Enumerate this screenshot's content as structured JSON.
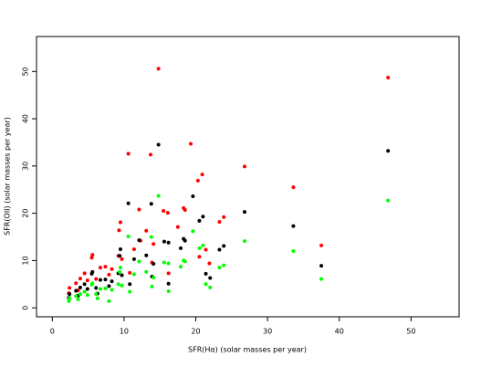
{
  "chart_data": {
    "type": "scatter",
    "x_label": "SFR(Hα) (solar masses per year)",
    "y_label": "SFR(OII) (solar masses per year)",
    "xlim": [
      -2.2,
      56.7
    ],
    "ylim": [
      -1.9,
      57.4
    ],
    "xticks": [
      0,
      10,
      20,
      30,
      40,
      50
    ],
    "yticks": [
      0,
      10,
      20,
      30,
      40,
      50
    ],
    "series": [
      {
        "color": "#ff0000",
        "x": [
          14.8,
          46.8,
          19.3,
          10.6,
          13.7,
          26.8,
          20.9,
          20.3,
          33.6,
          15.5,
          16.1,
          18.3,
          18.5,
          23.9,
          23.3,
          12.1,
          9.5,
          9.3,
          13.1,
          17.5,
          37.5,
          5.6,
          5.5,
          9.2,
          9.7,
          12.3,
          11.4,
          14.1,
          21.4,
          21.9,
          8.3,
          7.4,
          6.7,
          4.5,
          3.9,
          3.3,
          2.4,
          2.3,
          4.9,
          6.1,
          7.9,
          10.8,
          13.9,
          16.2,
          20.5,
          3.6
        ],
        "values": [
          50.6,
          48.7,
          34.7,
          32.6,
          32.4,
          29.9,
          28.2,
          26.9,
          25.5,
          20.5,
          20.1,
          21.1,
          20.7,
          19.2,
          18.2,
          20.8,
          18.1,
          16.4,
          16.3,
          17.1,
          13.2,
          11.2,
          10.6,
          11.0,
          10.3,
          14.2,
          12.4,
          13.5,
          12.3,
          9.4,
          8.2,
          8.7,
          8.5,
          7.3,
          6.2,
          5.2,
          4.2,
          3.1,
          5.8,
          6.1,
          7.0,
          7.4,
          9.6,
          7.3,
          10.8,
          3.7
        ]
      },
      {
        "color": "#000000",
        "x": [
          14.8,
          46.8,
          19.6,
          10.6,
          13.8,
          26.8,
          21.0,
          20.5,
          33.6,
          15.6,
          16.2,
          18.3,
          18.5,
          23.9,
          23.3,
          12.1,
          9.5,
          9.4,
          13.1,
          17.9,
          37.5,
          5.6,
          5.5,
          9.2,
          9.7,
          11.4,
          14.1,
          21.4,
          22.0,
          8.3,
          7.4,
          6.7,
          4.5,
          3.9,
          3.3,
          2.4,
          2.3,
          4.9,
          6.1,
          7.9,
          10.8,
          13.9,
          16.2,
          3.6,
          6.3
        ],
        "values": [
          34.5,
          33.2,
          23.6,
          22.1,
          22.0,
          20.3,
          19.3,
          18.4,
          17.3,
          14.0,
          13.8,
          14.6,
          14.2,
          13.1,
          12.3,
          14.3,
          12.4,
          11.0,
          11.1,
          12.6,
          8.9,
          7.6,
          7.2,
          7.3,
          6.9,
          10.3,
          9.3,
          7.2,
          6.3,
          5.6,
          6.0,
          5.9,
          5.0,
          4.3,
          3.6,
          2.9,
          2.1,
          4.0,
          4.2,
          4.6,
          5.0,
          6.6,
          5.1,
          2.6,
          3.0
        ]
      },
      {
        "color": "#00ff00",
        "x": [
          14.8,
          46.8,
          19.6,
          10.6,
          13.8,
          26.8,
          21.0,
          20.5,
          33.6,
          15.6,
          16.2,
          18.3,
          18.5,
          23.9,
          23.3,
          12.1,
          9.5,
          9.4,
          13.1,
          17.9,
          37.5,
          5.6,
          5.5,
          9.2,
          9.7,
          11.4,
          14.1,
          21.4,
          22.0,
          8.3,
          7.4,
          6.7,
          4.5,
          3.9,
          3.3,
          2.4,
          2.3,
          4.9,
          6.1,
          7.9,
          10.8,
          13.9,
          16.2,
          3.6,
          6.3
        ],
        "values": [
          23.7,
          22.7,
          16.2,
          15.1,
          15.0,
          14.1,
          13.2,
          12.6,
          12.0,
          9.6,
          9.4,
          10.0,
          9.8,
          9.0,
          8.5,
          9.8,
          8.5,
          7.6,
          7.6,
          8.7,
          6.1,
          5.2,
          4.9,
          5.0,
          4.7,
          7.1,
          6.4,
          5.0,
          4.3,
          3.8,
          4.1,
          4.0,
          3.4,
          2.9,
          2.5,
          2.0,
          1.4,
          2.7,
          2.9,
          1.4,
          3.4,
          4.5,
          3.5,
          1.8,
          2.0
        ]
      }
    ]
  }
}
